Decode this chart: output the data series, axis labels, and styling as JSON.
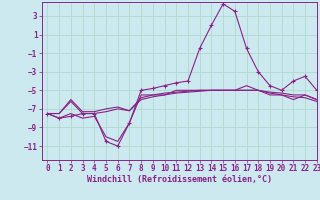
{
  "xlabel": "Windchill (Refroidissement éolien,°C)",
  "xlim": [
    -0.5,
    23
  ],
  "ylim": [
    -12.5,
    4.5
  ],
  "yticks": [
    3,
    1,
    -1,
    -3,
    -5,
    -7,
    -9,
    -11
  ],
  "xticks": [
    0,
    1,
    2,
    3,
    4,
    5,
    6,
    7,
    8,
    9,
    10,
    11,
    12,
    13,
    14,
    15,
    16,
    17,
    18,
    19,
    20,
    21,
    22,
    23
  ],
  "bg_color": "#cde9f0",
  "grid_color": "#b0d9cc",
  "line_color": "#882288",
  "lines": [
    [
      -7.5,
      -8.0,
      -7.8,
      -7.5,
      -7.5,
      -10.5,
      -11.0,
      -8.5,
      -5.0,
      -4.8,
      -4.5,
      -4.2,
      -4.0,
      -0.5,
      2.0,
      4.3,
      3.5,
      -0.5,
      -3.0,
      -4.5,
      -5.0,
      -4.0,
      -3.5,
      -5.0
    ],
    [
      -7.5,
      -7.5,
      -6.0,
      -7.3,
      -7.3,
      -7.0,
      -6.8,
      -7.2,
      -5.8,
      -5.5,
      -5.3,
      -5.2,
      -5.1,
      -5.0,
      -5.0,
      -5.0,
      -5.0,
      -5.0,
      -5.0,
      -5.2,
      -5.3,
      -5.5,
      -5.5,
      -6.0
    ],
    [
      -7.5,
      -7.5,
      -6.2,
      -7.5,
      -7.5,
      -7.3,
      -7.0,
      -7.2,
      -6.0,
      -5.7,
      -5.5,
      -5.3,
      -5.2,
      -5.1,
      -5.0,
      -5.0,
      -5.0,
      -5.0,
      -5.0,
      -5.3,
      -5.5,
      -5.7,
      -5.8,
      -6.2
    ],
    [
      -7.5,
      -8.0,
      -7.5,
      -8.0,
      -7.8,
      -10.0,
      -10.5,
      -8.5,
      -5.5,
      -5.5,
      -5.5,
      -5.0,
      -5.0,
      -5.0,
      -5.0,
      -5.0,
      -5.0,
      -4.5,
      -5.0,
      -5.5,
      -5.5,
      -6.0,
      -5.5,
      -6.0
    ]
  ],
  "line_has_marker": [
    true,
    false,
    false,
    false
  ],
  "xlabel_fontsize": 6.0,
  "tick_fontsize": 5.5
}
